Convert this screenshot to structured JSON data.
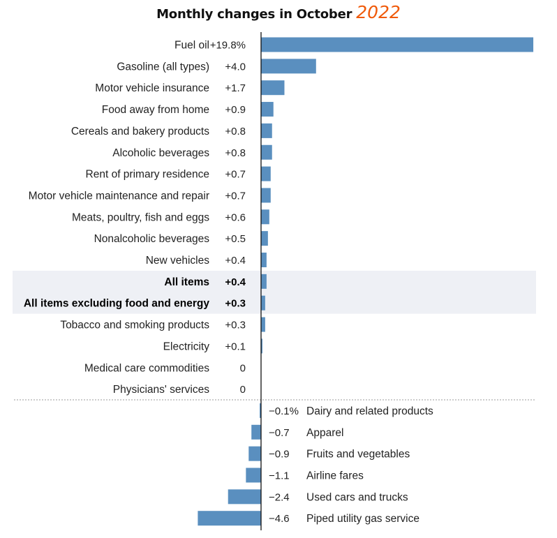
{
  "chart_data": {
    "type": "bar",
    "orientation": "horizontal",
    "title": "Monthly changes in October",
    "title_annotation": "2022",
    "annotation_color": "#f05a0a",
    "bar_color": "#5a8fbf",
    "highlight_color": "#eef0f5",
    "categories": [
      "Fuel oil",
      "Gasoline (all types)",
      "Motor vehicle insurance",
      "Food away from home",
      "Cereals and bakery products",
      "Alcoholic beverages",
      "Rent of primary residence",
      "Motor vehicle maintenance and repair",
      "Meats, poultry, fish and eggs",
      "Nonalcoholic beverages",
      "New vehicles",
      "All items",
      "All items excluding food and energy",
      "Tobacco and smoking products",
      "Electricity",
      "Medical care commodities",
      "Physicians' services",
      "Dairy and related products",
      "Apparel",
      "Fruits and vegetables",
      "Airline fares",
      "Used cars and trucks",
      "Piped utility gas service"
    ],
    "values": [
      19.8,
      4.0,
      1.7,
      0.9,
      0.8,
      0.8,
      0.7,
      0.7,
      0.6,
      0.5,
      0.4,
      0.4,
      0.3,
      0.3,
      0.1,
      0,
      0,
      -0.1,
      -0.7,
      -0.9,
      -1.1,
      -2.4,
      -4.6
    ],
    "value_labels": [
      "+19.8%",
      "+4.0",
      "+1.7",
      "+0.9",
      "+0.8",
      "+0.8",
      "+0.7",
      "+0.7",
      "+0.6",
      "+0.5",
      "+0.4",
      "+0.4",
      "+0.3",
      "+0.3",
      "+0.1",
      "0",
      "0",
      "−0.1%",
      "−0.7",
      "−0.9",
      "−1.1",
      "−2.4",
      "−4.6"
    ],
    "highlighted": [
      "All items",
      "All items excluding food and energy"
    ],
    "xlim": [
      -4.6,
      19.8
    ],
    "grid": false,
    "legend": false
  }
}
